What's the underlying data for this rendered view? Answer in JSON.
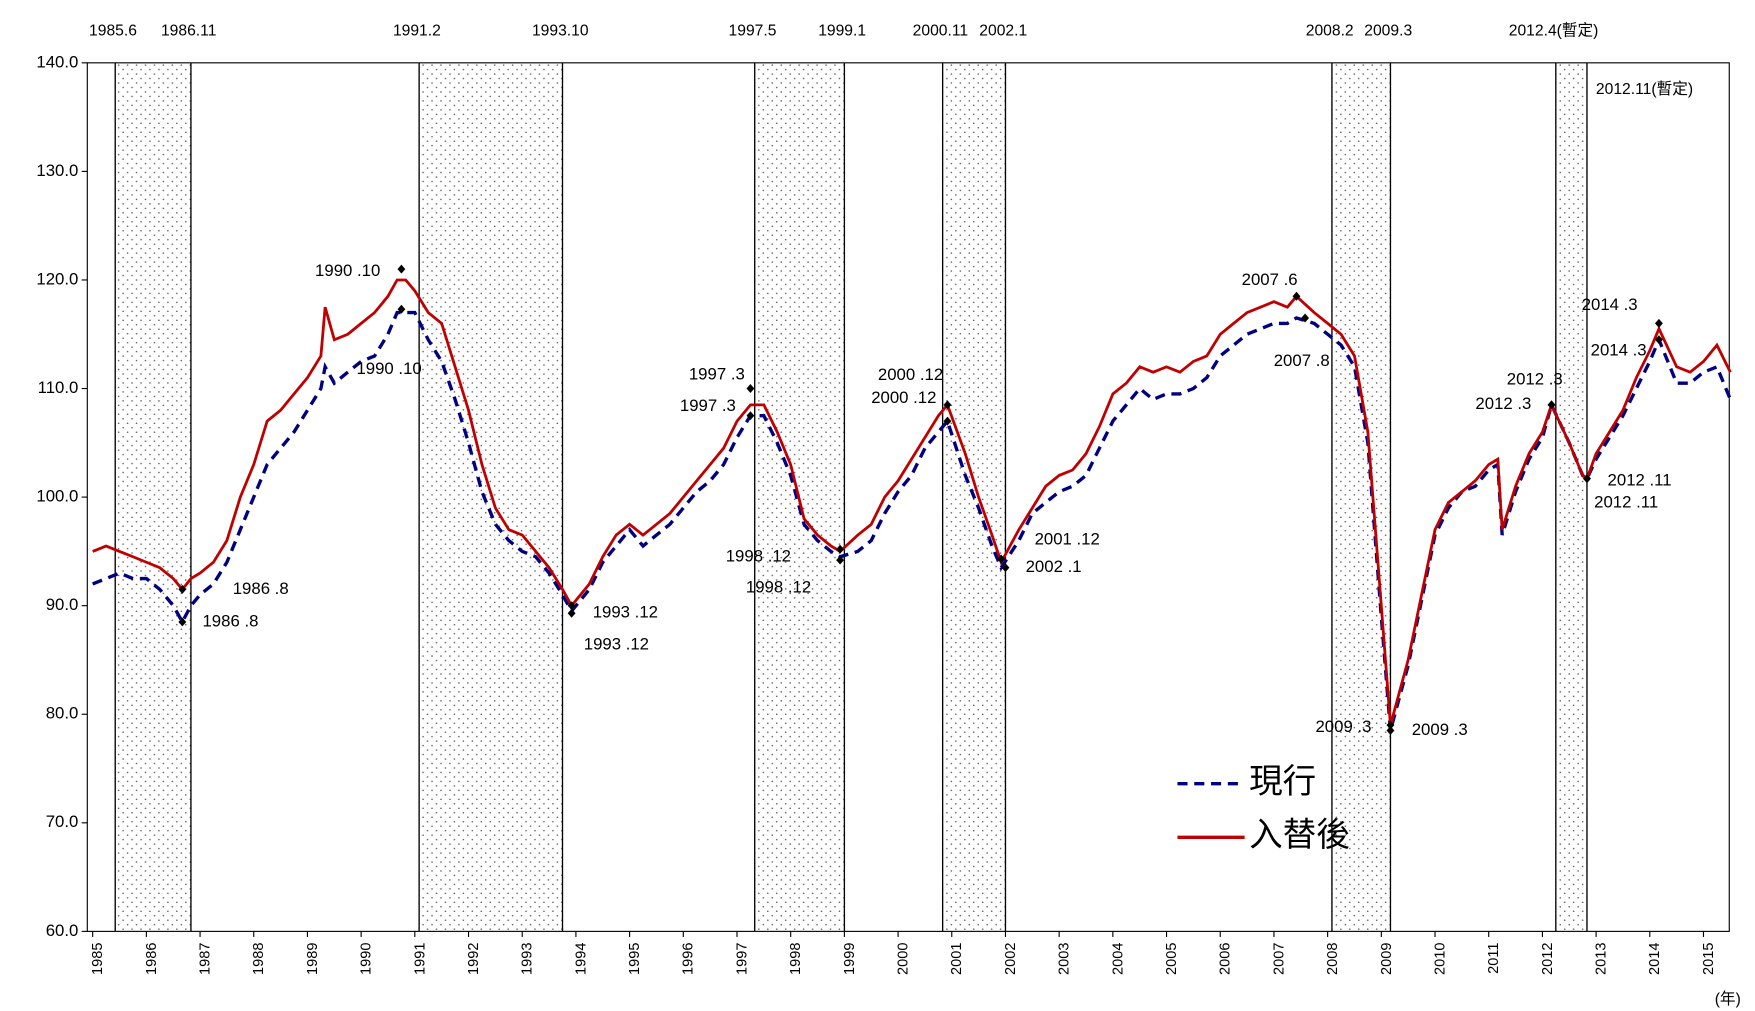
{
  "chart_data": {
    "type": "line",
    "ylim": [
      60,
      140
    ],
    "yticks": [
      {
        "value": 60,
        "label": "60.0"
      },
      {
        "value": 70,
        "label": "70.0"
      },
      {
        "value": 80,
        "label": "80.0"
      },
      {
        "value": 90,
        "label": "90.0"
      },
      {
        "value": 100,
        "label": "100.0"
      },
      {
        "value": 110,
        "label": "110.0"
      },
      {
        "value": 120,
        "label": "120.0"
      },
      {
        "value": 130,
        "label": "130.0"
      },
      {
        "value": 140,
        "label": "140.0"
      }
    ],
    "xlim": [
      1984.9,
      2015.48
    ],
    "xticks": [
      1985,
      1986,
      1987,
      1988,
      1989,
      1990,
      1991,
      1992,
      1993,
      1994,
      1995,
      1996,
      1997,
      1998,
      1999,
      2000,
      2001,
      2002,
      2003,
      2004,
      2005,
      2006,
      2007,
      2008,
      2009,
      2010,
      2011,
      2012,
      2013,
      2014,
      2015
    ],
    "x_label": "(年)",
    "legend": "lower center",
    "recessions": [
      [
        1985.42,
        1986.83
      ],
      [
        1991.08,
        1993.75
      ],
      [
        1997.33,
        1999.0
      ],
      [
        2000.83,
        2002.0
      ],
      [
        2008.08,
        2009.17
      ],
      [
        2012.25,
        2012.83
      ]
    ],
    "boundaries": [
      {
        "x": 1985.42,
        "label": "1985.6"
      },
      {
        "x": 1986.83,
        "label": "1986.11"
      },
      {
        "x": 1991.08,
        "label": "1991.2"
      },
      {
        "x": 1993.75,
        "label": "1993.10"
      },
      {
        "x": 1997.33,
        "label": "1997.5"
      },
      {
        "x": 1999.0,
        "label": "1999.1"
      },
      {
        "x": 2000.83,
        "label": "2000.11"
      },
      {
        "x": 2002.0,
        "label": "2002.1"
      },
      {
        "x": 2008.08,
        "label": "2008.2"
      },
      {
        "x": 2009.17,
        "label": "2009.3"
      },
      {
        "x": 2012.25,
        "label": "2012.4(暫定)"
      },
      {
        "x": 2012.83,
        "label": "2012.11(暫定)",
        "inside": true
      }
    ],
    "x": [
      1985,
      1985.25,
      1985.5,
      1985.75,
      1986,
      1986.25,
      1986.5,
      1986.67,
      1986.83,
      1987,
      1987.25,
      1987.5,
      1987.75,
      1988,
      1988.25,
      1988.5,
      1988.75,
      1989,
      1989.25,
      1989.33,
      1989.5,
      1989.75,
      1990,
      1990.25,
      1990.5,
      1990.67,
      1990.83,
      1991,
      1991.25,
      1991.5,
      1991.75,
      1992,
      1992.25,
      1992.5,
      1992.75,
      1993,
      1993.25,
      1993.5,
      1993.75,
      1993.92,
      1994.25,
      1994.5,
      1994.75,
      1995,
      1995.25,
      1995.5,
      1995.75,
      1996,
      1996.25,
      1996.5,
      1996.75,
      1997,
      1997.25,
      1997.5,
      1997.75,
      1998,
      1998.25,
      1998.5,
      1998.75,
      1998.92,
      1999.25,
      1999.5,
      1999.75,
      2000,
      2000.25,
      2000.5,
      2000.75,
      2000.92,
      2001.25,
      2001.5,
      2001.75,
      2001.92,
      2002.25,
      2002.5,
      2002.75,
      2003,
      2003.25,
      2003.5,
      2003.75,
      2004,
      2004.25,
      2004.5,
      2004.75,
      2005,
      2005.25,
      2005.5,
      2005.75,
      2006,
      2006.25,
      2006.5,
      2006.75,
      2007,
      2007.25,
      2007.42,
      2007.75,
      2008,
      2008.25,
      2008.5,
      2008.75,
      2009,
      2009.17,
      2009.5,
      2009.75,
      2010,
      2010.25,
      2010.5,
      2010.75,
      2011,
      2011.17,
      2011.25,
      2011.5,
      2011.75,
      2012,
      2012.17,
      2012.5,
      2012.75,
      2012.83,
      2013,
      2013.25,
      2013.5,
      2013.75,
      2014,
      2014.17,
      2014.5,
      2014.75,
      2015,
      2015.25,
      2015.5
    ],
    "series": [
      {
        "name": "現行",
        "color": "#000080",
        "label_color": "#0070c0",
        "dashed": true,
        "values": [
          92,
          92.5,
          93,
          92.5,
          92.5,
          91.5,
          90,
          88.5,
          90,
          91,
          92,
          94,
          97,
          100,
          103,
          104.5,
          106,
          108,
          110,
          112,
          110.5,
          111.5,
          112.5,
          113,
          115,
          117,
          117,
          117,
          114.5,
          112.5,
          109,
          105,
          100.5,
          97.5,
          96,
          95,
          94.5,
          93,
          91,
          89.5,
          91.5,
          94,
          95.5,
          97,
          95.5,
          96.5,
          97.5,
          99,
          100.5,
          101.5,
          103,
          105.5,
          107.5,
          107.5,
          105,
          102,
          97.5,
          96,
          95,
          94.5,
          95,
          96,
          98.5,
          100.5,
          102,
          104.5,
          106,
          107,
          102,
          99,
          95.5,
          93.5,
          96,
          98.5,
          99.5,
          100.5,
          101,
          102,
          104.5,
          107,
          108.5,
          110,
          109,
          109.5,
          109.5,
          110,
          111,
          113,
          114,
          115,
          115.5,
          116,
          116,
          116.5,
          116,
          115,
          114,
          112,
          105,
          89,
          78.5,
          84.5,
          90.5,
          96.5,
          99,
          100.5,
          101,
          102.5,
          103,
          96.5,
          100.5,
          103.5,
          105.5,
          108.5,
          105,
          102,
          101.7,
          103.5,
          105.5,
          107.5,
          110,
          112.5,
          114.5,
          110.5,
          110.5,
          111.5,
          112,
          109
        ]
      },
      {
        "name": "入替後",
        "color": "#c00000",
        "label_color": "#ff0000",
        "dashed": false,
        "values": [
          95,
          95.5,
          95,
          94.5,
          94,
          93.5,
          92.5,
          91.5,
          92.5,
          93,
          94,
          96,
          100,
          103,
          107,
          108,
          109.5,
          111,
          113,
          117.5,
          114.5,
          115,
          116,
          117,
          118.5,
          120,
          120,
          119,
          117,
          116,
          112,
          108,
          103,
          99,
          97,
          96.5,
          95,
          93.5,
          91.5,
          90,
          92,
          94.5,
          96.5,
          97.5,
          96.5,
          97.5,
          98.5,
          100,
          101.5,
          103,
          104.5,
          107,
          108.5,
          108.5,
          106,
          103,
          98,
          96.5,
          95.5,
          95,
          96.5,
          97.5,
          100,
          101.5,
          103.5,
          105.5,
          107.5,
          108.5,
          104,
          100,
          96.5,
          94,
          97,
          99,
          101,
          102,
          102.5,
          104,
          106.5,
          109.5,
          110.5,
          112,
          111.5,
          112,
          111.5,
          112.5,
          113,
          115,
          116,
          117,
          117.5,
          118,
          117.5,
          118.5,
          117,
          116,
          115,
          113,
          106,
          90,
          79,
          85,
          91,
          97,
          99.5,
          100.5,
          101.5,
          103,
          103.5,
          97,
          101,
          104,
          106,
          108.5,
          105,
          102,
          101.7,
          104,
          106,
          108,
          111,
          113.5,
          115.5,
          112,
          111.5,
          112.5,
          114,
          111.5
        ]
      }
    ],
    "annotations": [
      {
        "text": "1986 .8",
        "series": 1,
        "x": 1986.67,
        "y": 91.5
      },
      {
        "text": "1990 .10",
        "series": 1,
        "x": 1990.75,
        "y": 121
      },
      {
        "text": "1993 .12",
        "series": 1,
        "x": 1993.92,
        "y": 90
      },
      {
        "text": "1997 .3",
        "series": 1,
        "x": 1997.25,
        "y": 110
      },
      {
        "text": "1998 .12",
        "series": 1,
        "x": 1998.92,
        "y": 95.2
      },
      {
        "text": "2000 .12",
        "series": 1,
        "x": 2000.92,
        "y": 108.5
      },
      {
        "text": "2001 .12",
        "series": 1,
        "x": 2001.92,
        "y": 94.3
      },
      {
        "text": "2007 .6",
        "series": 1,
        "x": 2007.42,
        "y": 118.5
      },
      {
        "text": "2009 .3",
        "series": 1,
        "x": 2009.17,
        "y": 79
      },
      {
        "text": "2012 .3",
        "series": 1,
        "x": 2012.17,
        "y": 108.5
      },
      {
        "text": "2012 .11",
        "series": 1,
        "x": 2012.83,
        "y": 101.7
      },
      {
        "text": "2014 .3",
        "series": 1,
        "x": 2014.17,
        "y": 116
      },
      {
        "text": "1986 .8",
        "series": 0,
        "x": 1986.67,
        "y": 88.5
      },
      {
        "text": "1990 .10",
        "series": 0,
        "x": 1990.75,
        "y": 117.3
      },
      {
        "text": "1993 .12",
        "series": 0,
        "x": 1993.92,
        "y": 89.3
      },
      {
        "text": "1997 .3",
        "series": 0,
        "x": 1997.25,
        "y": 107.5
      },
      {
        "text": "1998 .12",
        "series": 0,
        "x": 1998.92,
        "y": 94.2
      },
      {
        "text": "2000 .12",
        "series": 0,
        "x": 2000.92,
        "y": 107
      },
      {
        "text": "2002 .1",
        "series": 0,
        "x": 2002.0,
        "y": 93.5
      },
      {
        "text": "2007 .8",
        "series": 0,
        "x": 2007.58,
        "y": 116.5
      },
      {
        "text": "2009 .3",
        "series": 0,
        "x": 2009.17,
        "y": 78.5
      },
      {
        "text": "2012 .3",
        "series": 0,
        "x": 2012.17,
        "y": 108.5
      },
      {
        "text": "2012 .11",
        "series": 0,
        "x": 2012.83,
        "y": 101.7
      },
      {
        "text": "2014 .3",
        "series": 0,
        "x": 2014.17,
        "y": 114.5
      }
    ]
  }
}
